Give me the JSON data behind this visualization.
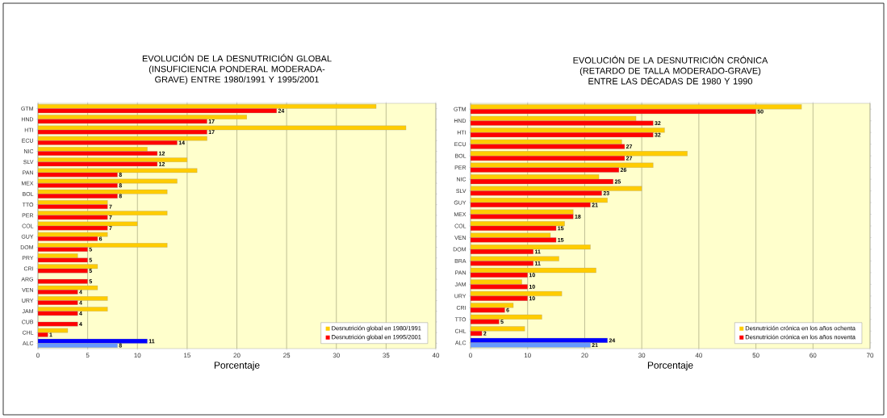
{
  "chart_data": [
    {
      "type": "bar",
      "orientation": "horizontal",
      "title": "EVOLUCIÓN DE LA DESNUTRICIÓN GLOBAL (INSUFICIENCIA PONDERAL MODERADA-GRAVE) ENTRE 1980/1991 Y 1995/2001",
      "xlabel": "Porcentaje",
      "categories": [
        "GTM",
        "HND",
        "HTI",
        "ECU",
        "NIC",
        "SLV",
        "PAN",
        "MEX",
        "BOL",
        "TTO",
        "PER",
        "COL",
        "GUY",
        "DOM",
        "PRY",
        "CRI",
        "ARG",
        "VEN",
        "URY",
        "JAM",
        "CUB",
        "CHL",
        "ALC"
      ],
      "series": [
        {
          "name": "Desnutrición global en 1980/1991",
          "color": "#ffcc00",
          "colors": [
            "#ffcc00",
            "#ffcc00",
            "#ffcc00",
            "#ffcc00",
            "#ffcc00",
            "#ffcc00",
            "#ffcc00",
            "#ffcc00",
            "#ffcc00",
            "#ffcc00",
            "#ffcc00",
            "#ffcc00",
            "#ffcc00",
            "#ffcc00",
            "#ffcc00",
            "#ffcc00",
            "#ffcc00",
            "#ffcc00",
            "#ffcc00",
            "#ffcc00",
            "#ffcc00",
            "#ffcc00",
            "#0000ff"
          ],
          "values": [
            34,
            21,
            37,
            17,
            11,
            15,
            16,
            14,
            13,
            7,
            13,
            10,
            7,
            13,
            4,
            6,
            null,
            6,
            7,
            7,
            null,
            3,
            11
          ],
          "value_labels": [
            null,
            null,
            null,
            null,
            null,
            null,
            null,
            null,
            null,
            null,
            null,
            null,
            null,
            null,
            null,
            null,
            null,
            null,
            null,
            null,
            null,
            null,
            "11"
          ]
        },
        {
          "name": "Desnutrición global en 1995/2001",
          "color": "#ff0000",
          "colors": [
            "#ff0000",
            "#ff0000",
            "#ff0000",
            "#ff0000",
            "#ff0000",
            "#ff0000",
            "#ff0000",
            "#ff0000",
            "#ff0000",
            "#ff0000",
            "#ff0000",
            "#ff0000",
            "#ff0000",
            "#ff0000",
            "#ff0000",
            "#ff0000",
            "#ff0000",
            "#ff0000",
            "#ff0000",
            "#ff0000",
            "#ff0000",
            "#ff0000",
            "#6699ff"
          ],
          "values": [
            24,
            17,
            17,
            14,
            12,
            12,
            8,
            8,
            8,
            7,
            7,
            7,
            6,
            5,
            5,
            5,
            5,
            4,
            4,
            4,
            4,
            1,
            8
          ],
          "value_labels": [
            "24",
            "17",
            "17",
            "14",
            "12",
            "12",
            "8",
            "8",
            "8",
            "7",
            "7",
            "7",
            "6",
            "5",
            "5",
            "5",
            "5",
            "4",
            "4",
            "4",
            "4",
            "1",
            "8"
          ]
        }
      ],
      "xlim": [
        0,
        40
      ],
      "xticks": [
        0,
        5,
        10,
        15,
        20,
        25,
        30,
        35,
        40
      ],
      "grid": "x",
      "legend": "bottom right"
    },
    {
      "type": "bar",
      "orientation": "horizontal",
      "title": "EVOLUCIÓN DE LA DESNUTRICIÓN CRÓNICA (RETARDO DE TALLA MODERADO-GRAVE) ENTRE LAS DÉCADAS DE 1980 Y 1990",
      "xlabel": "Porcentaje",
      "categories": [
        "GTM",
        "HND",
        "HTI",
        "ECU",
        "BOL",
        "PER",
        "NIC",
        "SLV",
        "GUY",
        "MEX",
        "COL",
        "VEN",
        "DOM",
        "BRA",
        "PAN",
        "JAM",
        "URY",
        "CRI",
        "TTO",
        "CHL",
        "ALC"
      ],
      "series": [
        {
          "name": "Desnutrición crónica en los años ochenta",
          "color": "#ffcc00",
          "colors": [
            "#ffcc00",
            "#ffcc00",
            "#ffcc00",
            "#ffcc00",
            "#ffcc00",
            "#ffcc00",
            "#ffcc00",
            "#ffcc00",
            "#ffcc00",
            "#ffcc00",
            "#ffcc00",
            "#ffcc00",
            "#ffcc00",
            "#ffcc00",
            "#ffcc00",
            "#ffcc00",
            "#ffcc00",
            "#ffcc00",
            "#ffcc00",
            "#ffcc00",
            "#0000ff"
          ],
          "values": [
            58,
            29,
            34,
            26.5,
            38,
            32,
            22.5,
            30,
            24,
            18,
            16.5,
            14,
            21,
            15.5,
            22,
            9,
            16,
            7.5,
            12.5,
            9.5,
            24
          ],
          "value_labels": [
            null,
            null,
            null,
            null,
            null,
            null,
            null,
            null,
            null,
            null,
            null,
            null,
            null,
            null,
            null,
            null,
            null,
            null,
            null,
            null,
            "24"
          ]
        },
        {
          "name": "Desnutrición crónica en los años noventa",
          "color": "#ff0000",
          "colors": [
            "#ff0000",
            "#ff0000",
            "#ff0000",
            "#ff0000",
            "#ff0000",
            "#ff0000",
            "#ff0000",
            "#ff0000",
            "#ff0000",
            "#ff0000",
            "#ff0000",
            "#ff0000",
            "#ff0000",
            "#ff0000",
            "#ff0000",
            "#ff0000",
            "#ff0000",
            "#ff0000",
            "#ff0000",
            "#ff0000",
            "#6699ff"
          ],
          "values": [
            50,
            32,
            32,
            27,
            27,
            26,
            25,
            23,
            21,
            18,
            15,
            15,
            11,
            11,
            10,
            10,
            10,
            6,
            5,
            2,
            21
          ],
          "value_labels": [
            "50",
            "32",
            "32",
            "27",
            "27",
            "26",
            "25",
            "23",
            "21",
            "18",
            "15",
            "15",
            "11",
            "11",
            "10",
            "10",
            "10",
            "6",
            "5",
            "2",
            "21"
          ]
        }
      ],
      "xlim": [
        0,
        70
      ],
      "xticks": [
        0,
        10,
        20,
        30,
        40,
        50,
        60,
        70
      ],
      "grid": "x",
      "legend": "bottom right"
    }
  ]
}
